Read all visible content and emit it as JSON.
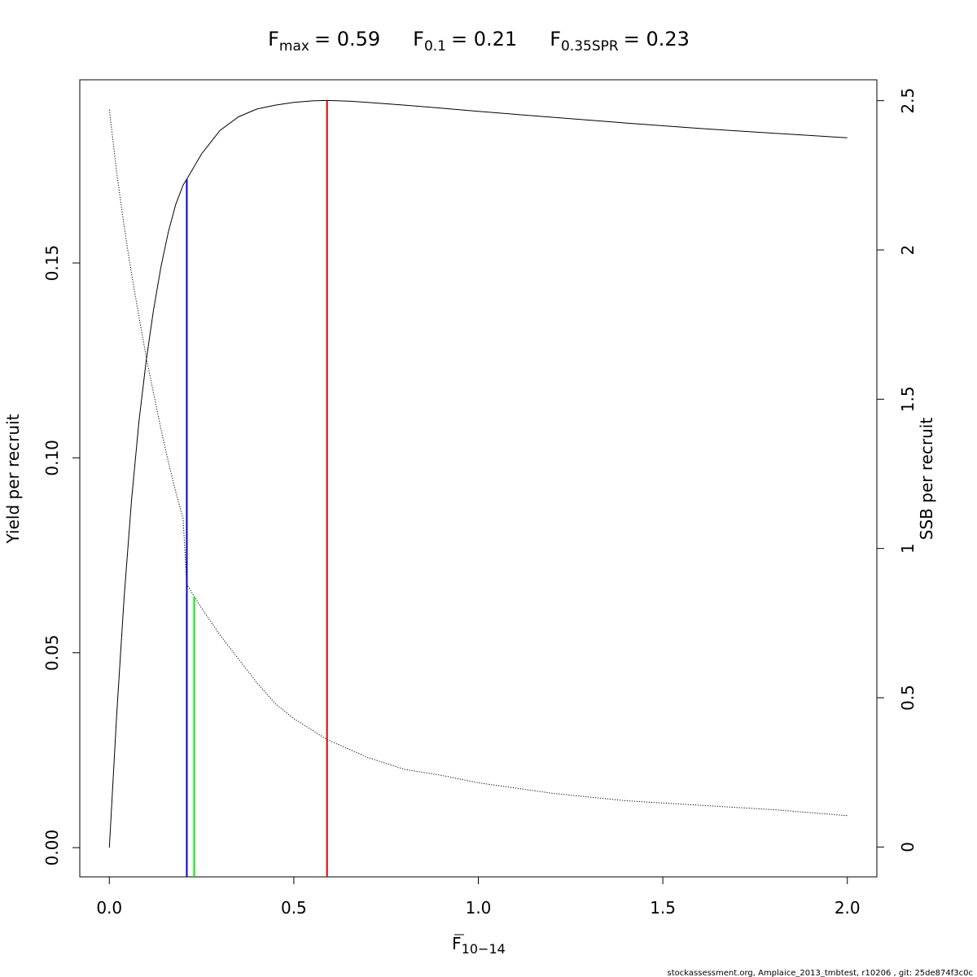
{
  "chart_data": {
    "type": "line",
    "title": {
      "fmax": {
        "sym": "F",
        "sub": "max",
        "value": "= 0.59"
      },
      "f01": {
        "sym": "F",
        "sub": "0.1",
        "value": "= 0.21"
      },
      "fspr": {
        "sym": "F",
        "sub": "0.35SPR",
        "value": "= 0.23"
      }
    },
    "xlabel": {
      "sym": "F",
      "sub": "10−14"
    },
    "ylabel_left": "Yield per recruit",
    "ylabel_right": "SSB per recruit",
    "xlim": [
      -0.08,
      2.08
    ],
    "ylim_left": [
      -0.0075,
      0.197
    ],
    "ylim_right": [
      -0.1,
      2.57
    ],
    "x_ticks": [
      0,
      0.5,
      1,
      1.5,
      2
    ],
    "x_tick_labels": [
      "0.0",
      "0.5",
      "1.0",
      "1.5",
      "2.0"
    ],
    "y_left_ticks": [
      0,
      0.05,
      0.1,
      0.15
    ],
    "y_left_tick_labels": [
      "0.00",
      "0.05",
      "0.10",
      "0.15"
    ],
    "y_right_ticks": [
      0,
      0.5,
      1,
      1.5,
      2,
      2.5
    ],
    "y_right_tick_labels": [
      "0",
      "0.5",
      "1",
      "1.5",
      "2",
      "2.5"
    ],
    "series": [
      {
        "axis": "left",
        "style": "solid",
        "color": "#000000",
        "x": [
          0,
          0.02,
          0.04,
          0.06,
          0.08,
          0.1,
          0.12,
          0.14,
          0.16,
          0.18,
          0.2,
          0.21,
          0.25,
          0.3,
          0.35,
          0.4,
          0.45,
          0.5,
          0.55,
          0.59,
          0.65,
          0.7,
          0.8,
          0.9,
          1.0,
          1.2,
          1.4,
          1.6,
          1.8,
          2.0
        ],
        "values": [
          0.0,
          0.034,
          0.064,
          0.089,
          0.109,
          0.125,
          0.138,
          0.149,
          0.158,
          0.165,
          0.17,
          0.1715,
          0.178,
          0.184,
          0.1875,
          0.1895,
          0.1905,
          0.1912,
          0.1916,
          0.1917,
          0.1915,
          0.1912,
          0.1905,
          0.1897,
          0.1889,
          0.1874,
          0.1859,
          0.1845,
          0.1833,
          0.1821
        ]
      },
      {
        "axis": "right",
        "style": "dotted",
        "color": "#000000",
        "x": [
          0,
          0.02,
          0.04,
          0.06,
          0.08,
          0.1,
          0.12,
          0.14,
          0.16,
          0.18,
          0.2,
          0.21,
          0.23,
          0.25,
          0.3,
          0.35,
          0.4,
          0.45,
          0.5,
          0.59,
          0.7,
          0.8,
          0.9,
          1.0,
          1.2,
          1.4,
          1.6,
          1.8,
          2.0
        ],
        "values": [
          2.47,
          2.26,
          2.08,
          1.92,
          1.78,
          1.64,
          1.52,
          1.4,
          1.29,
          1.19,
          1.1,
          0.88,
          0.84,
          0.8,
          0.71,
          0.63,
          0.55,
          0.48,
          0.43,
          0.36,
          0.3,
          0.26,
          0.24,
          0.215,
          0.18,
          0.155,
          0.14,
          0.125,
          0.105
        ]
      }
    ],
    "reference_lines": [
      {
        "label": "F0.1",
        "x": 0.21,
        "y_top": 0.1715,
        "axis": "left",
        "color": "#0000cc"
      },
      {
        "label": "F0.35SPR",
        "x": 0.23,
        "y_top": 0.84,
        "axis": "right",
        "color": "#00ee00"
      },
      {
        "label": "Fmax",
        "x": 0.59,
        "y_top": 0.1917,
        "axis": "left",
        "color": "#dd0000"
      }
    ]
  },
  "footer": "stockassessment.org, Amplaice_2013_tmbtest, r10206 , git: 25de874f3c0c"
}
